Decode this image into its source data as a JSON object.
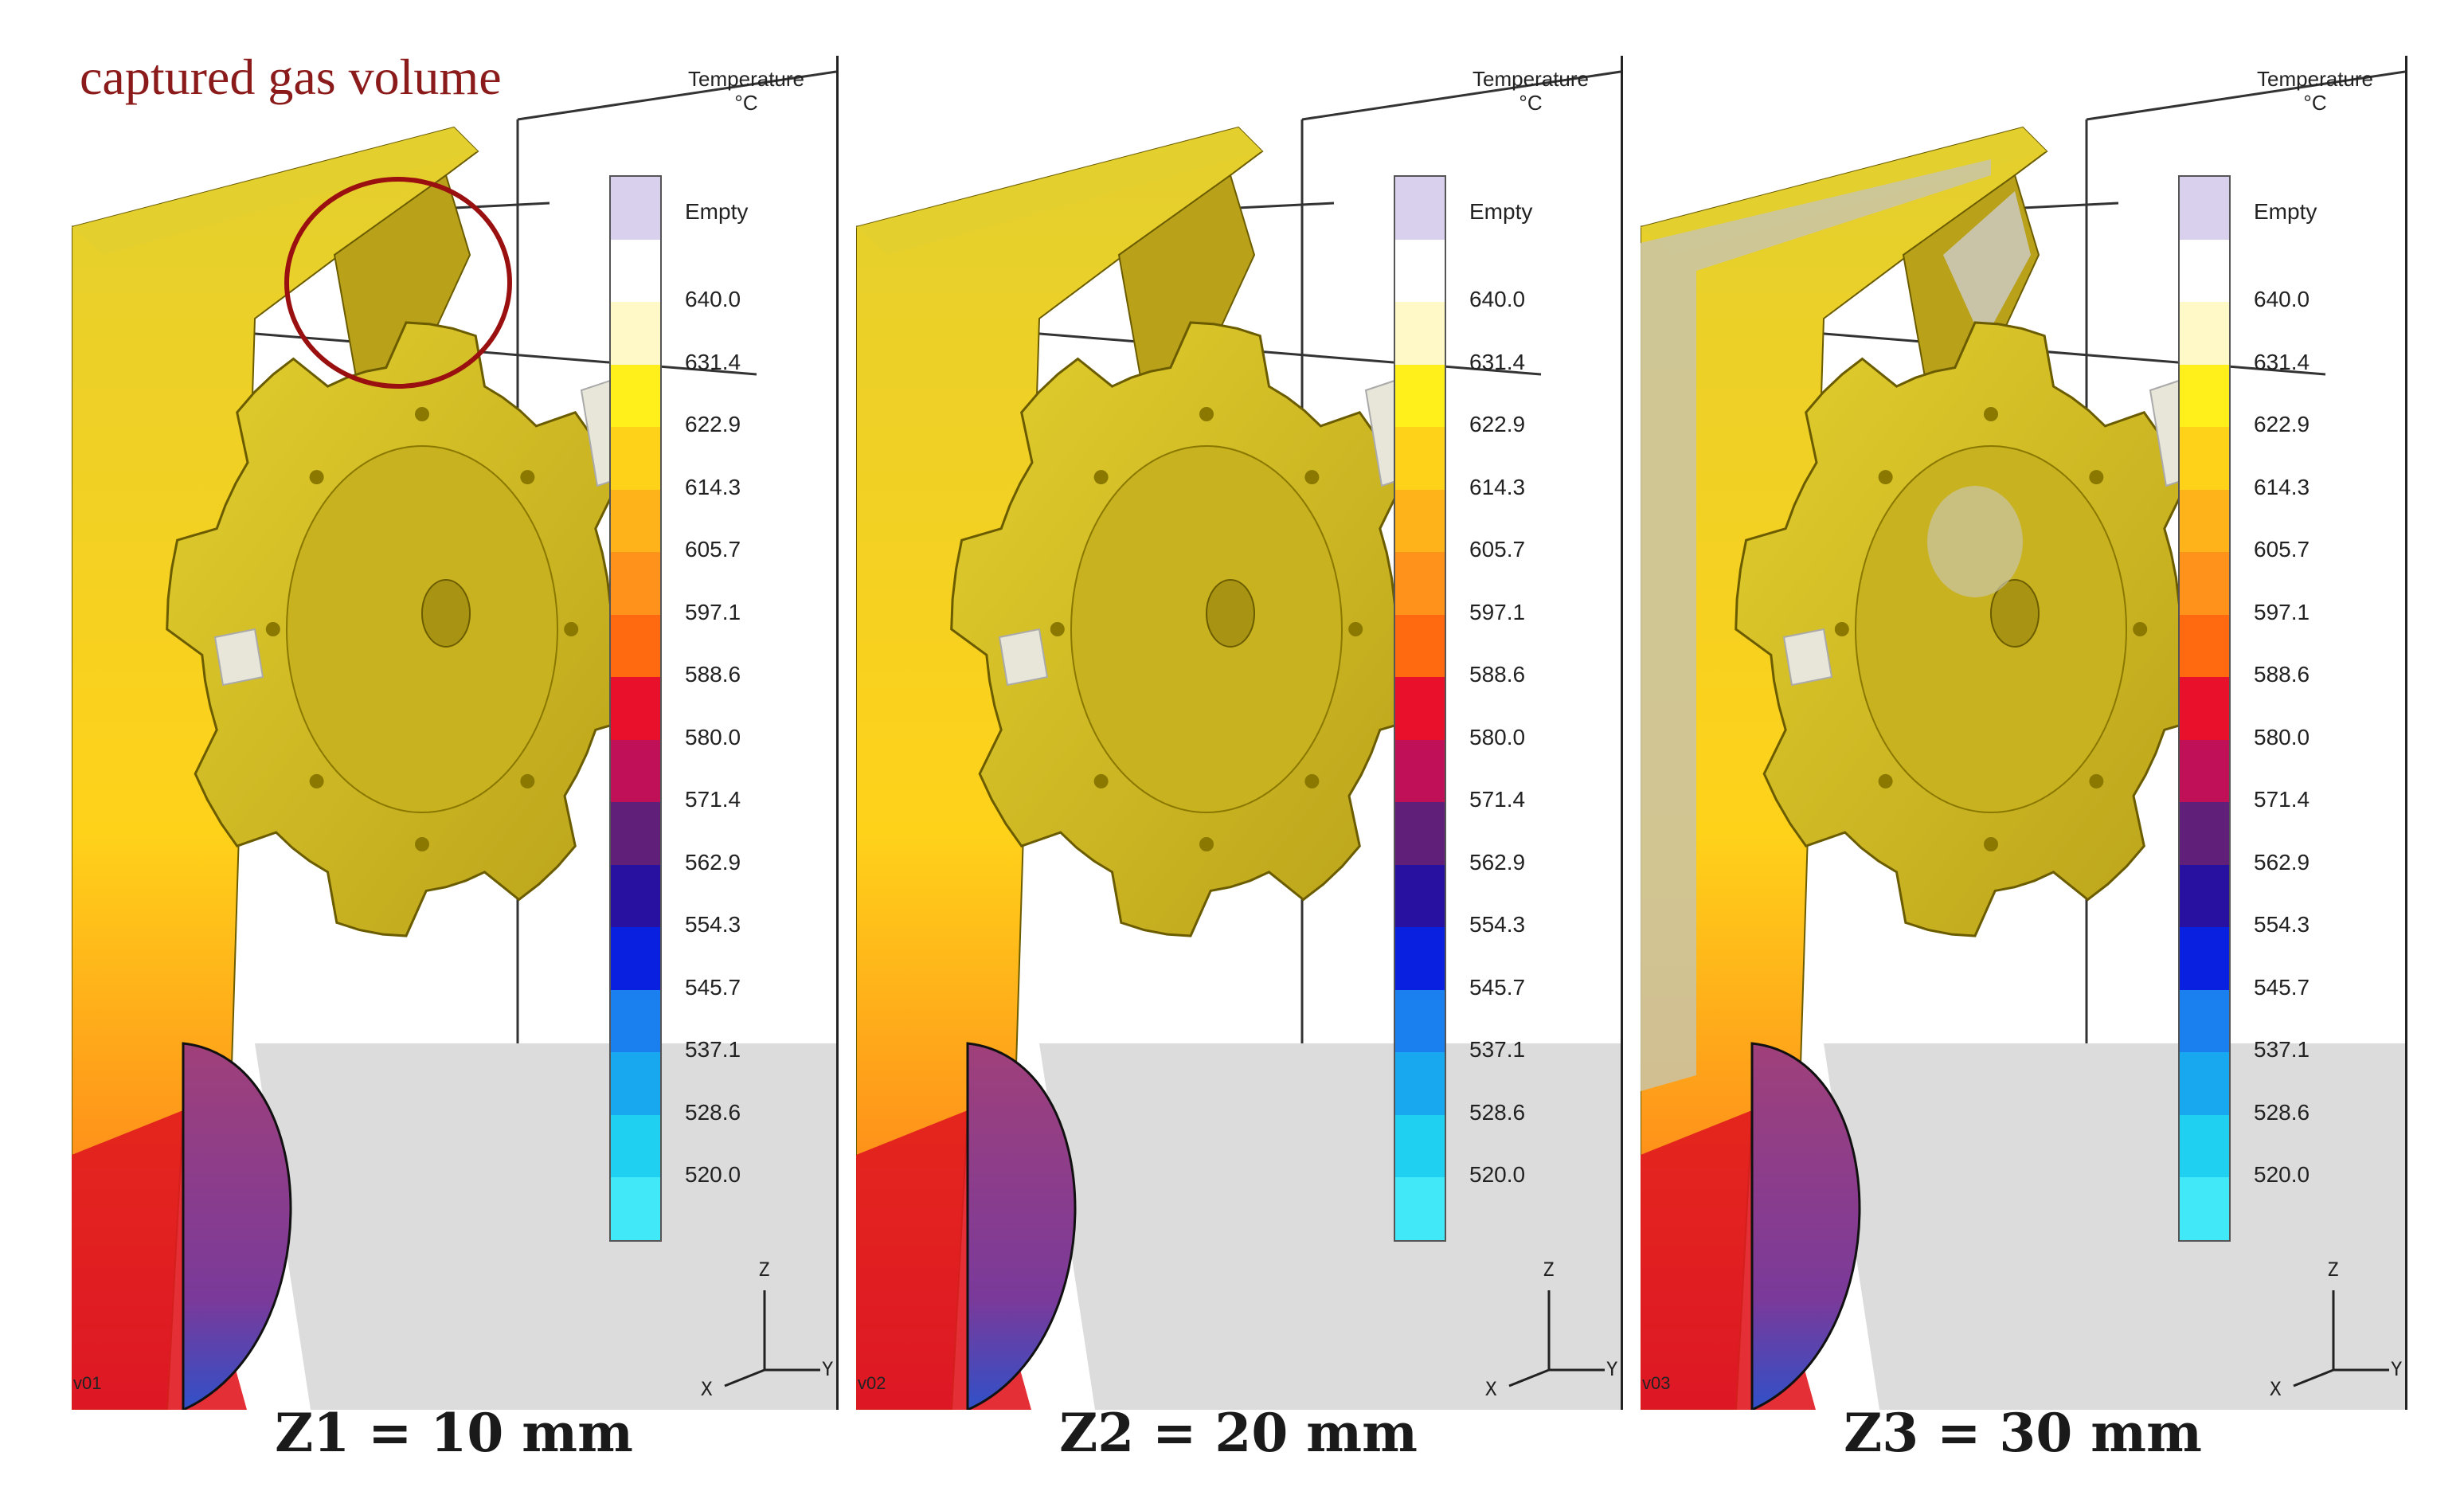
{
  "annotation": "captured gas volume",
  "colors": {
    "annotation": "#8b1a1a",
    "casting_base": "#b9a21a",
    "casting_light": "#e3cf2e",
    "empty_region": "#c9c4a8",
    "floor": "#dcdcdc"
  },
  "legend": {
    "title": "Temperature\n°C",
    "empty_label": "Empty",
    "labels": [
      "640.0",
      "631.4",
      "622.9",
      "614.3",
      "605.7",
      "597.1",
      "588.6",
      "580.0",
      "571.4",
      "562.9",
      "554.3",
      "545.7",
      "537.1",
      "528.6",
      "520.0"
    ],
    "swatches": [
      "#d8d0ec",
      "#ffffff",
      "#fff9c8",
      "#ffef1a",
      "#ffd21a",
      "#ffb31a",
      "#ff921a",
      "#ff6a10",
      "#e8102a",
      "#c01058",
      "#60207a",
      "#2810a0",
      "#0a20e0",
      "#1a80f0",
      "#18a8f0",
      "#20d0f0",
      "#40e8f8"
    ]
  },
  "axes": {
    "z": "Z",
    "x": "X",
    "y": "Y"
  },
  "panels": [
    {
      "caption": "Z1 = 10 mm",
      "version": "v01"
    },
    {
      "caption": "Z2 = 20 mm",
      "version": "v02"
    },
    {
      "caption": "Z3 = 30 mm",
      "version": "v03"
    }
  ]
}
